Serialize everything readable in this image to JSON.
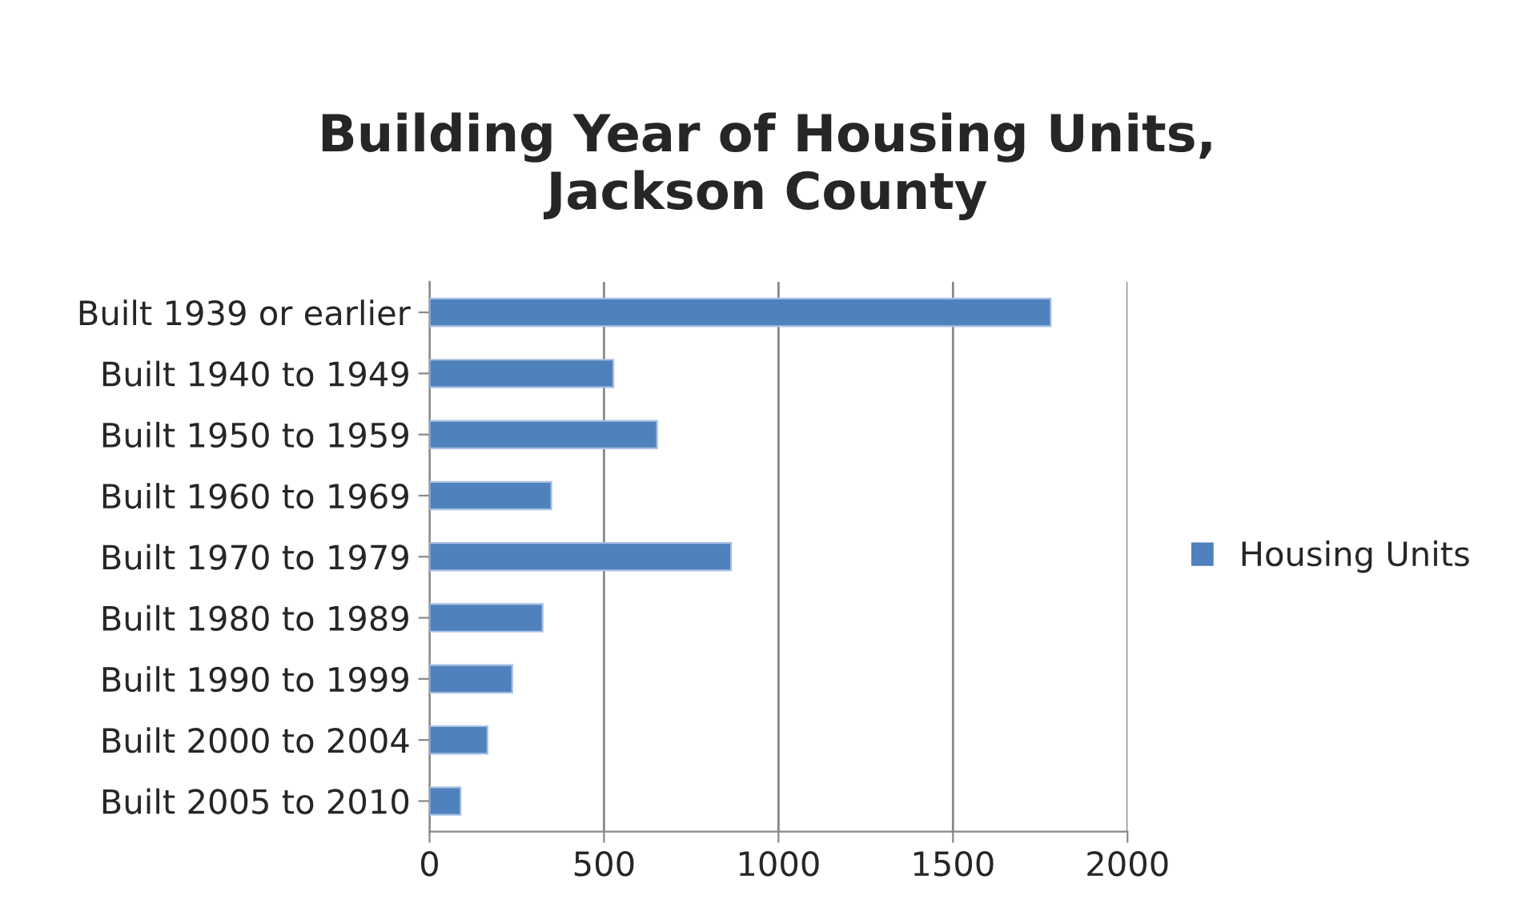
{
  "chart_data": {
    "type": "bar",
    "orientation": "horizontal",
    "title": "Building Year of Housing Units,\nJackson County",
    "categories": [
      "Built 1939 or earlier",
      "Built 1940 to 1949",
      "Built 1950 to 1959",
      "Built 1960 to 1969",
      "Built 1970 to 1979",
      "Built 1980 to 1989",
      "Built 1990 to 1999",
      "Built 2000 to 2004",
      "Built 2005 to 2010"
    ],
    "series": [
      {
        "name": "Housing Units",
        "color": "#4f81bd",
        "values": [
          1780,
          527,
          652,
          349,
          864,
          324,
          237,
          166,
          89
        ]
      }
    ],
    "xlim": [
      0,
      2000
    ],
    "xticks": [
      0,
      500,
      1000,
      1500,
      2000
    ],
    "grid": "x",
    "legend": "right"
  }
}
